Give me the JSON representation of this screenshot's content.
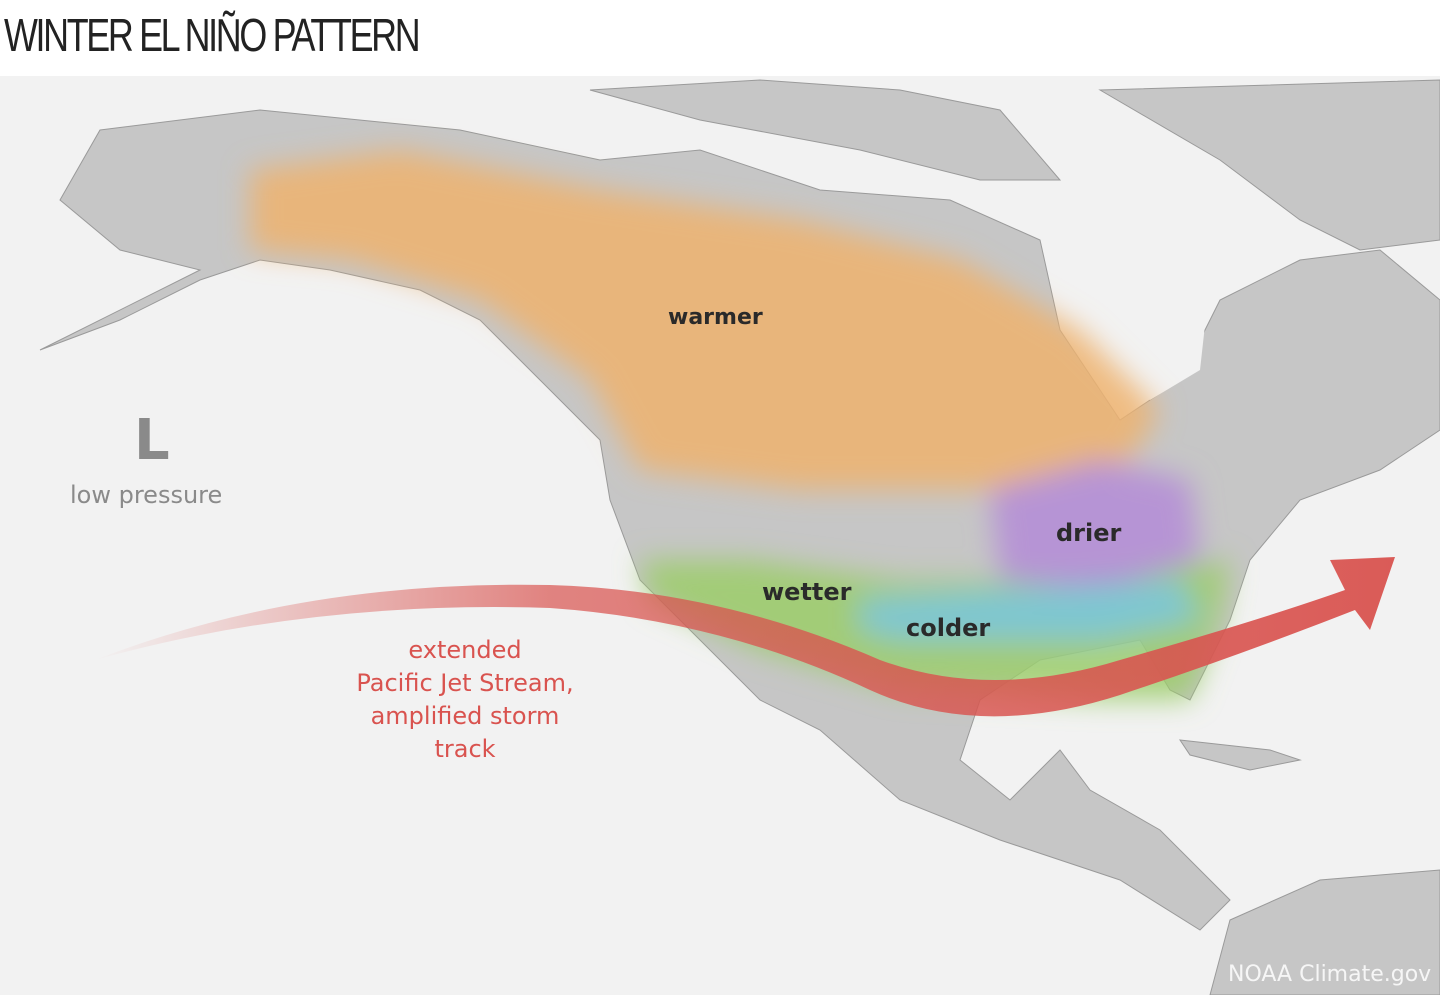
{
  "title": "WINTER EL NIÑO PATTERN",
  "labels": {
    "warmer": "warmer",
    "drier": "drier",
    "wetter": "wetter",
    "colder": "colder",
    "pressure_symbol": "L",
    "pressure_label": "low pressure",
    "jet_line1": "extended",
    "jet_line2": "Pacific Jet Stream,",
    "jet_line3": "amplified storm",
    "jet_line4": "track"
  },
  "credit": "NOAA Climate.gov",
  "colors": {
    "warmer": "#eeb36e",
    "drier": "#b58fd6",
    "wetter": "#9ccc6a",
    "colder": "#7cc6d6",
    "jet_stream": "#d9534f",
    "land": "#c4c4c4",
    "ocean": "#f2f2f2"
  }
}
